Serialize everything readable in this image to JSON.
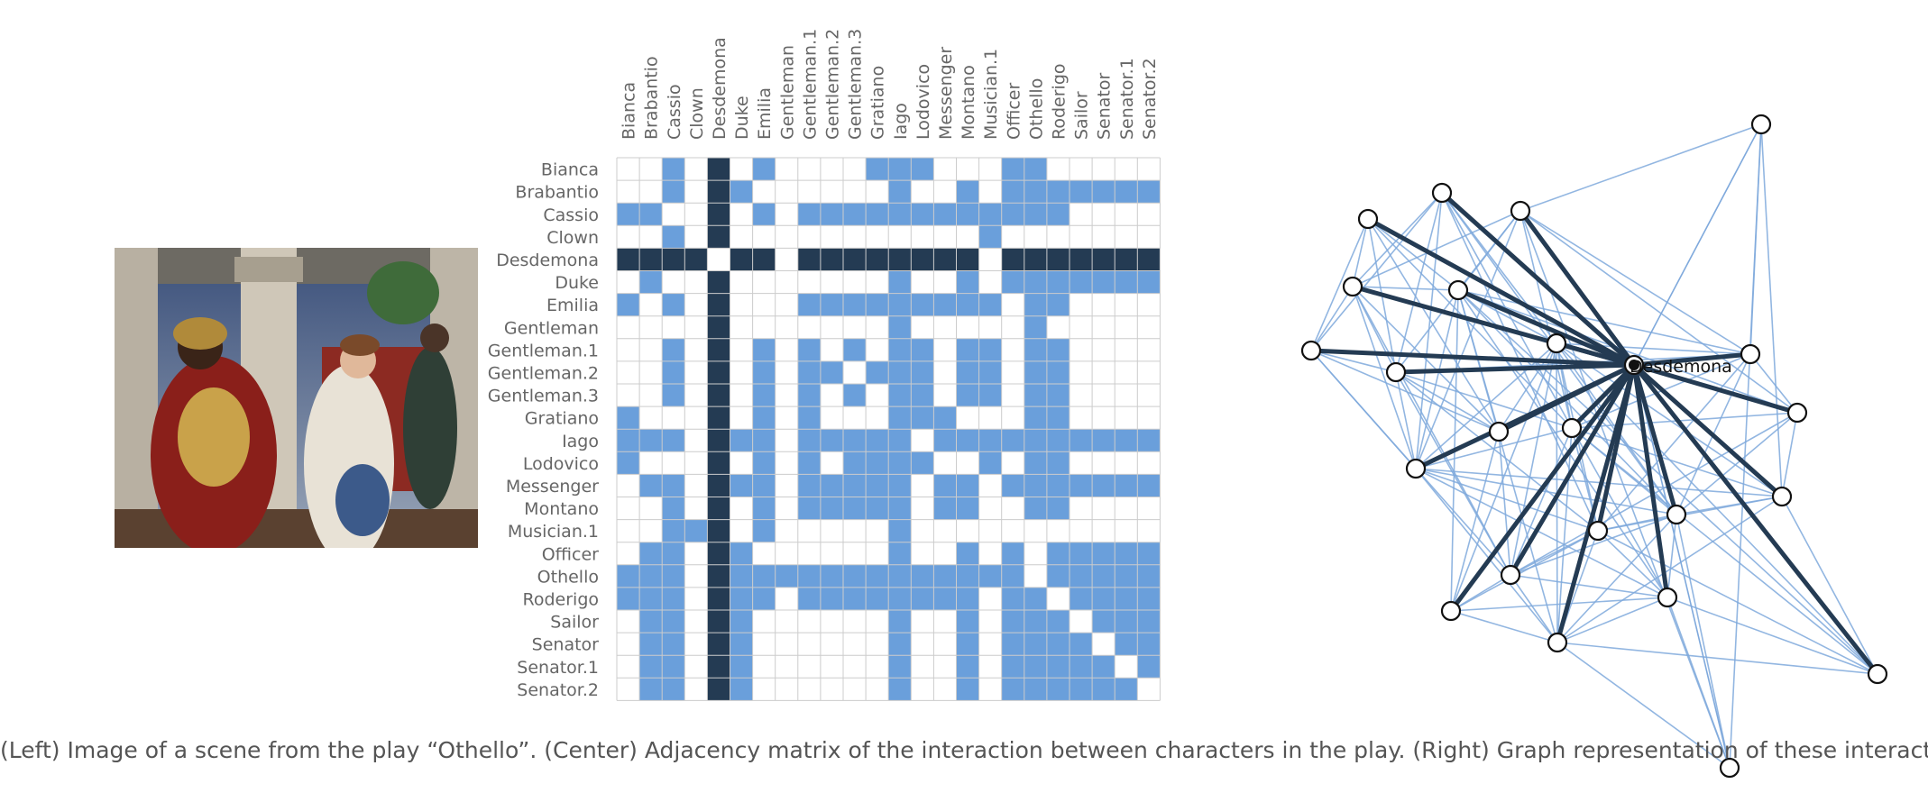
{
  "characters": [
    "Bianca",
    "Brabantio",
    "Cassio",
    "Clown",
    "Desdemona",
    "Duke",
    "Emilia",
    "Gentleman",
    "Gentleman.1",
    "Gentleman.2",
    "Gentleman.3",
    "Gratiano",
    "Iago",
    "Lodovico",
    "Messenger",
    "Montano",
    "Musician.1",
    "Officer",
    "Othello",
    "Roderigo",
    "Sailor",
    "Senator",
    "Senator.1",
    "Senator.2"
  ],
  "highlight": "Desdemona",
  "highlight_index": 4,
  "adjacency_rows": [
    "001010100001110001100000",
    "001011000000100101111111",
    "110010101111111111110000",
    "001010000000000010000000",
    "111101101111111101111111",
    "010010000000100101111111",
    "101010001111111110110000",
    "000010000000100000100000",
    "001010101010110110110000",
    "001010101101110110110000",
    "001010101010110110110000",
    "100010101000111000110000",
    "111011101111101111111111",
    "100010101011110010110000",
    "011011101111101101111111",
    "001010101111101100110000",
    "001110100000100000000000",
    "011011000000100101011111",
    "111011111111111111011111",
    "111011101111111101101111",
    "011011000000100101110111",
    "011011000000100101111011",
    "011011000000100101111101",
    "011011000000100101111110"
  ],
  "graph_label": "Desdemona",
  "colors": {
    "edge": "#6a9fdb",
    "highlight": "#243b53",
    "grid": "#cccccc",
    "label": "#666666"
  },
  "caption": "(Left) Image of a scene from the play “Othello”. (Center) Adjacency matrix of the interaction between characters in the play. (Right) Graph representation of these interactions."
}
